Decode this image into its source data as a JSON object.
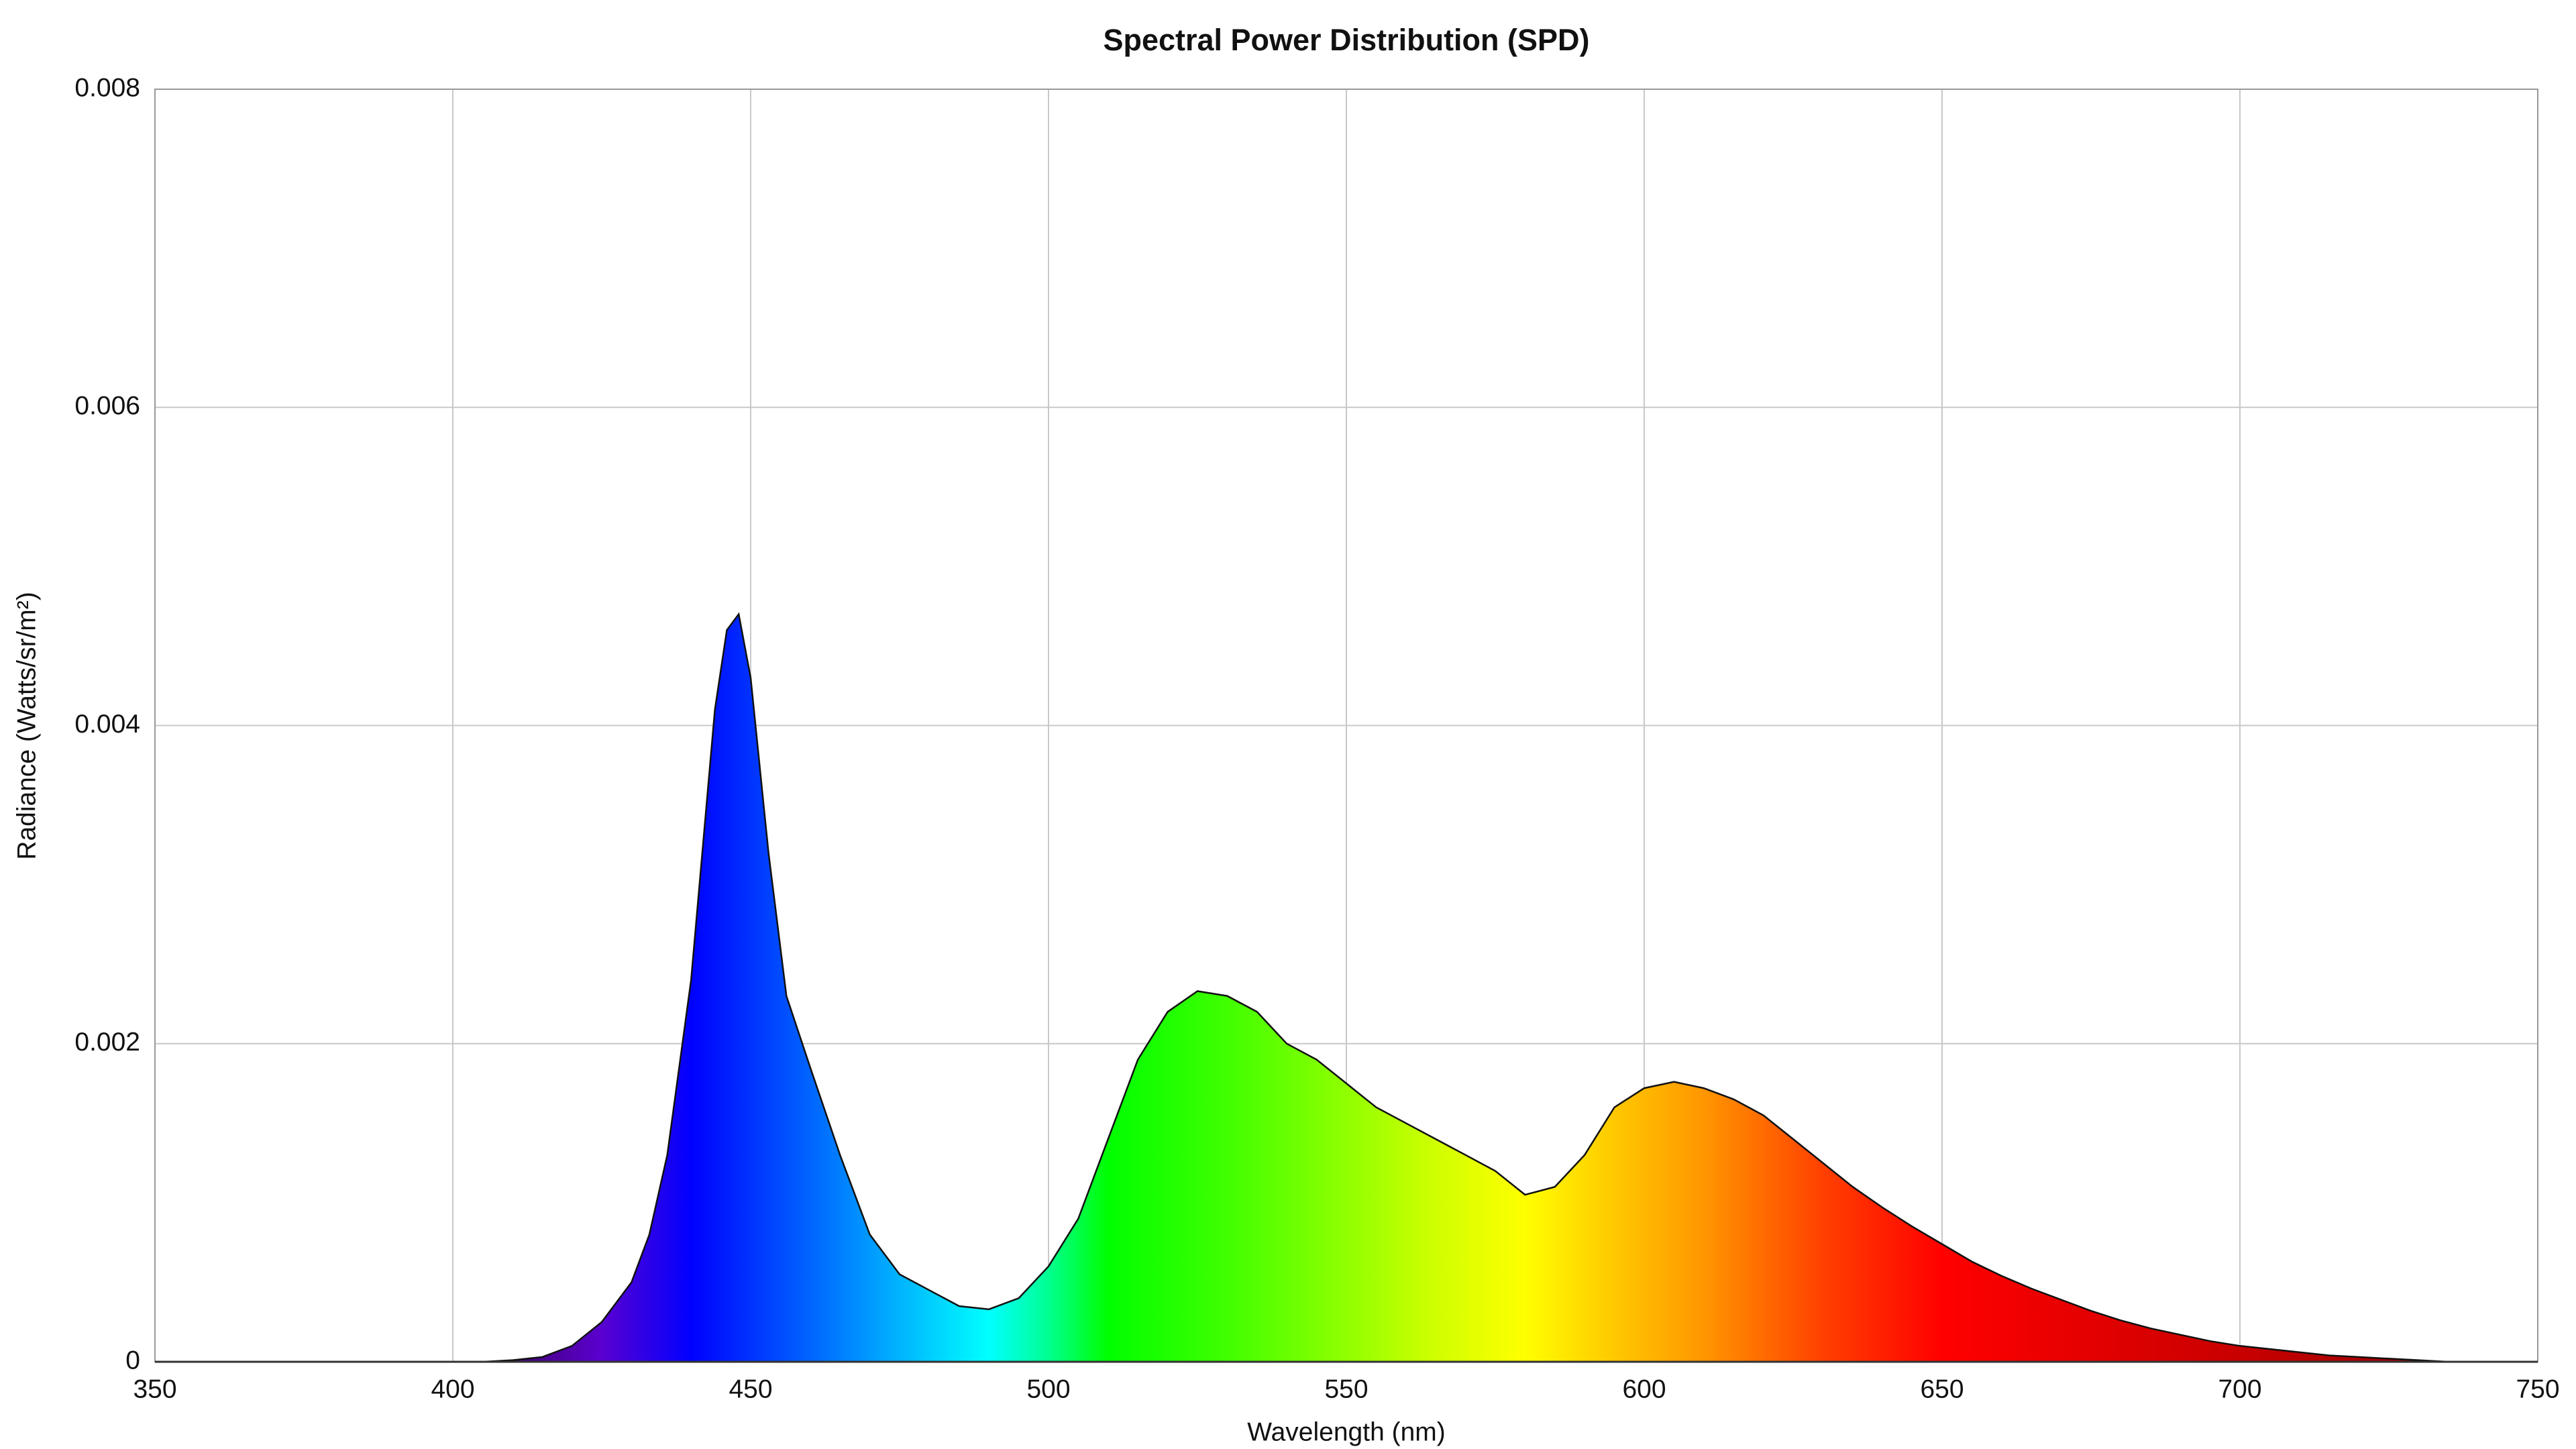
{
  "chart_data": {
    "type": "area",
    "title": "Spectral Power Distribution (SPD)",
    "x_label": "Wavelength (nm)",
    "y_label": "Radiance (Watts/sr/m²)",
    "x": [
      350,
      360,
      370,
      380,
      390,
      400,
      405,
      410,
      415,
      420,
      425,
      430,
      433,
      436,
      440,
      444,
      446,
      448,
      450,
      453,
      456,
      460,
      465,
      470,
      475,
      480,
      485,
      490,
      495,
      500,
      505,
      510,
      515,
      520,
      525,
      530,
      535,
      540,
      545,
      550,
      555,
      560,
      565,
      570,
      575,
      580,
      585,
      590,
      595,
      600,
      605,
      610,
      615,
      620,
      625,
      630,
      635,
      640,
      645,
      650,
      655,
      660,
      665,
      670,
      675,
      680,
      685,
      690,
      695,
      700,
      705,
      710,
      715,
      720,
      725,
      730,
      735,
      740,
      750
    ],
    "values": [
      0,
      0,
      0,
      0,
      0,
      0,
      0,
      1e-05,
      3e-05,
      0.0001,
      0.00025,
      0.0005,
      0.0008,
      0.0013,
      0.0024,
      0.0041,
      0.0046,
      0.0047,
      0.0043,
      0.0032,
      0.0023,
      0.00185,
      0.0013,
      0.0008,
      0.00055,
      0.00045,
      0.00035,
      0.00033,
      0.0004,
      0.0006,
      0.0009,
      0.0014,
      0.0019,
      0.0022,
      0.00233,
      0.0023,
      0.0022,
      0.002,
      0.0019,
      0.00175,
      0.0016,
      0.0015,
      0.0014,
      0.0013,
      0.0012,
      0.00105,
      0.0011,
      0.0013,
      0.0016,
      0.00172,
      0.00176,
      0.00172,
      0.00165,
      0.00155,
      0.0014,
      0.00125,
      0.0011,
      0.00097,
      0.00085,
      0.00074,
      0.00063,
      0.00054,
      0.00046,
      0.00039,
      0.00032,
      0.00026,
      0.00021,
      0.00017,
      0.00013,
      0.0001,
      8e-05,
      6e-05,
      4e-05,
      3e-05,
      2e-05,
      1e-05,
      0,
      0,
      0
    ],
    "xlim": [
      350,
      750
    ],
    "xticks": [
      350,
      400,
      450,
      500,
      550,
      600,
      650,
      700,
      750
    ],
    "ylim": [
      0,
      0.008
    ],
    "yticks": [
      0,
      0.002,
      0.004,
      0.006,
      0.008
    ],
    "grid": true
  }
}
